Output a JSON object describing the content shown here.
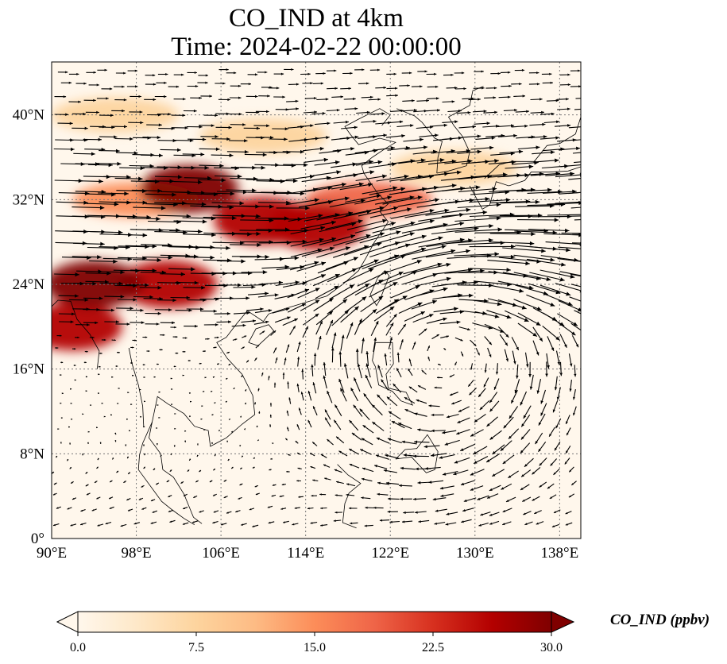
{
  "title": {
    "line1": "CO_IND at 4km",
    "line2": "Time: 2024-02-22 00:00:00"
  },
  "map": {
    "projection": "PlateCarree",
    "lon_range": [
      90,
      140
    ],
    "lat_range": [
      0,
      45
    ],
    "x_ticks": [
      {
        "value": 90,
        "label": "90°E"
      },
      {
        "value": 98,
        "label": "98°E"
      },
      {
        "value": 106,
        "label": "106°E"
      },
      {
        "value": 114,
        "label": "114°E"
      },
      {
        "value": 122,
        "label": "122°E"
      },
      {
        "value": 130,
        "label": "130°E"
      },
      {
        "value": 138,
        "label": "138°E"
      }
    ],
    "y_ticks": [
      {
        "value": 0,
        "label": "0°"
      },
      {
        "value": 8,
        "label": "8°N"
      },
      {
        "value": 16,
        "label": "16°N"
      },
      {
        "value": 24,
        "label": "24°N"
      },
      {
        "value": 32,
        "label": "32°N"
      },
      {
        "value": 40,
        "label": "40°N"
      }
    ],
    "gridlines": true,
    "field": {
      "variable": "CO_IND",
      "units": "ppbv",
      "plumes": [
        {
          "lon": 94,
          "lat": 24,
          "value": 30
        },
        {
          "lon": 101,
          "lat": 24,
          "value": 27
        },
        {
          "lon": 92,
          "lat": 20,
          "value": 26
        },
        {
          "lon": 103,
          "lat": 33,
          "value": 29
        },
        {
          "lon": 110,
          "lat": 30,
          "value": 28
        },
        {
          "lon": 115,
          "lat": 29.5,
          "value": 25
        },
        {
          "lon": 120,
          "lat": 32,
          "value": 19
        },
        {
          "lon": 98,
          "lat": 32,
          "value": 14
        },
        {
          "lon": 110,
          "lat": 38,
          "value": 8
        },
        {
          "lon": 128,
          "lat": 35,
          "value": 7
        },
        {
          "lon": 96,
          "lat": 40,
          "value": 6
        }
      ]
    },
    "wind": {
      "pattern": "westerly jet north of ~20°N with anticyclonic circulation centred near 127°E 18°N",
      "jet_axis_lat": 30,
      "anticyclone_center": [
        127,
        18
      ]
    }
  },
  "colorbar": {
    "colormap": "OrRd",
    "min": 0.0,
    "max": 30.0,
    "extend": "both",
    "ticks": [
      "0.0",
      "7.5",
      "15.0",
      "22.5",
      "30.0"
    ],
    "label": "CO_IND (ppbv)",
    "colors": [
      "#fff7ec",
      "#fee8c8",
      "#fdd49e",
      "#fdbb84",
      "#fc8d59",
      "#ef6548",
      "#d7301f",
      "#b30000",
      "#7f0000"
    ]
  }
}
